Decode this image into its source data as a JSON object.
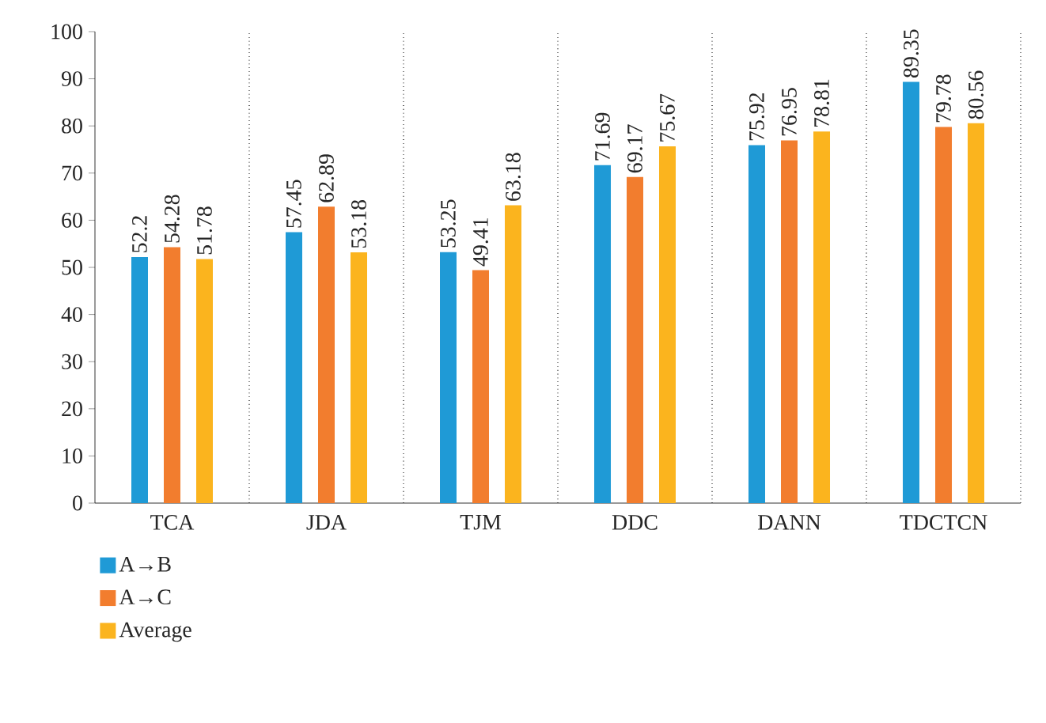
{
  "chart_data": {
    "type": "bar",
    "categories": [
      "TCA",
      "JDA",
      "TJM",
      "DDC",
      "DANN",
      "TDCTCN"
    ],
    "series": [
      {
        "name": "A→B",
        "color": "#1f9ad6",
        "values": [
          52.2,
          57.45,
          53.25,
          71.69,
          75.92,
          89.35
        ]
      },
      {
        "name": "A→C",
        "color": "#f27d2e",
        "values": [
          54.28,
          62.89,
          49.41,
          69.17,
          76.95,
          79.78
        ]
      },
      {
        "name": "Average",
        "color": "#fbb41e",
        "values": [
          51.78,
          53.18,
          63.18,
          75.67,
          78.81,
          80.56
        ]
      }
    ],
    "ylim": [
      0,
      100
    ],
    "yticks": [
      0,
      10,
      20,
      30,
      40,
      50,
      60,
      70,
      80,
      90,
      100
    ],
    "grid": "x",
    "legend": "bottom left",
    "data_labels": true
  }
}
